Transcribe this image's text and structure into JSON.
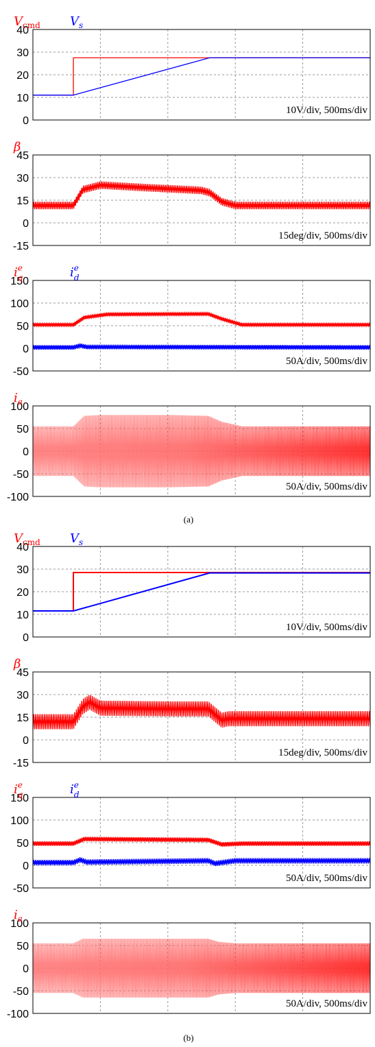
{
  "colors": {
    "red": "#ff0000",
    "blue": "#0000ff",
    "grid": "#999999"
  },
  "captions": [
    "(a)",
    "(b)"
  ],
  "chart_data": [
    {
      "type": "line",
      "panel": "a1",
      "time_ms": [
        0,
        2500
      ],
      "ylim": [
        0,
        40
      ],
      "yticks": [
        "40",
        "30",
        "20",
        "10",
        "0"
      ],
      "scale_label": "10V/div, 500ms/div",
      "series": [
        {
          "name": "V_cmd",
          "color": "red",
          "points": [
            [
              0,
              11
            ],
            [
              300,
              11
            ],
            [
              300,
              27.5
            ],
            [
              2500,
              27.5
            ]
          ]
        },
        {
          "name": "V_s",
          "color": "blue",
          "points": [
            [
              0,
              11
            ],
            [
              300,
              11
            ],
            [
              1310,
              27.5
            ],
            [
              2500,
              27.5
            ]
          ]
        }
      ]
    },
    {
      "type": "line",
      "panel": "a2",
      "time_ms": [
        0,
        2500
      ],
      "ylim": [
        -15,
        45
      ],
      "yticks": [
        "45",
        "30",
        "15",
        "0",
        "-15"
      ],
      "scale_label": "15deg/div, 500ms/div",
      "series": [
        {
          "name": "β",
          "color": "red",
          "band": 2.5,
          "points": [
            [
              0,
              11.5
            ],
            [
              300,
              11.5
            ],
            [
              370,
              22
            ],
            [
              500,
              25
            ],
            [
              800,
              23.5
            ],
            [
              1250,
              21.5
            ],
            [
              1310,
              20
            ],
            [
              1400,
              14
            ],
            [
              1500,
              11.5
            ],
            [
              2500,
              11.5
            ]
          ]
        }
      ]
    },
    {
      "type": "line",
      "panel": "a3",
      "time_ms": [
        0,
        2500
      ],
      "ylim": [
        -50,
        150
      ],
      "yticks": [
        "150",
        "100",
        "50",
        "0",
        "-50"
      ],
      "scale_label": "50A/div, 500ms/div",
      "series": [
        {
          "name": "i_q^e",
          "color": "red",
          "band": 3,
          "points": [
            [
              0,
              52
            ],
            [
              300,
              52
            ],
            [
              380,
              68
            ],
            [
              550,
              75
            ],
            [
              1300,
              76
            ],
            [
              1400,
              65
            ],
            [
              1550,
              52
            ],
            [
              2500,
              52
            ]
          ]
        },
        {
          "name": "i_d^e",
          "color": "blue",
          "band": 5,
          "points": [
            [
              0,
              2
            ],
            [
              300,
              2
            ],
            [
              350,
              6
            ],
            [
              400,
              3
            ],
            [
              2500,
              2
            ]
          ]
        }
      ]
    },
    {
      "type": "area",
      "panel": "a4",
      "time_ms": [
        0,
        2500
      ],
      "ylim": [
        -100,
        100
      ],
      "yticks": [
        "100",
        "50",
        "0",
        "-50",
        "-100"
      ],
      "scale_label": "50A/div, 500ms/div",
      "series": [
        {
          "name": "i_a",
          "color": "red",
          "envelope": [
            [
              0,
              55
            ],
            [
              300,
              55
            ],
            [
              380,
              78
            ],
            [
              500,
              80
            ],
            [
              1000,
              80
            ],
            [
              1300,
              78
            ],
            [
              1400,
              65
            ],
            [
              1550,
              55
            ],
            [
              2500,
              55
            ]
          ]
        }
      ]
    },
    {
      "type": "line",
      "panel": "b1",
      "time_ms": [
        0,
        2500
      ],
      "ylim": [
        0,
        40
      ],
      "yticks": [
        "40",
        "30",
        "20",
        "10",
        "0"
      ],
      "scale_label": "10V/div, 500ms/div",
      "series": [
        {
          "name": "V_cmd",
          "color": "red",
          "points": [
            [
              0,
              11.5
            ],
            [
              300,
              11.5
            ],
            [
              300,
              28.5
            ],
            [
              2500,
              28.5
            ]
          ]
        },
        {
          "name": "V_s",
          "color": "blue",
          "points": [
            [
              0,
              11.5
            ],
            [
              300,
              11.5
            ],
            [
              1310,
              28.3
            ],
            [
              2500,
              28.3
            ]
          ]
        }
      ]
    },
    {
      "type": "line",
      "panel": "b2",
      "time_ms": [
        0,
        2500
      ],
      "ylim": [
        -15,
        45
      ],
      "yticks": [
        "45",
        "30",
        "15",
        "0",
        "-15"
      ],
      "scale_label": "15deg/div, 500ms/div",
      "series": [
        {
          "name": "β",
          "color": "red",
          "band": 5,
          "points": [
            [
              0,
              12
            ],
            [
              300,
              12
            ],
            [
              370,
              22
            ],
            [
              420,
              25
            ],
            [
              500,
              21
            ],
            [
              1000,
              20.5
            ],
            [
              1300,
              20.5
            ],
            [
              1400,
              13
            ],
            [
              1450,
              14
            ],
            [
              2500,
              14
            ]
          ]
        }
      ]
    },
    {
      "type": "line",
      "panel": "b3",
      "time_ms": [
        0,
        2500
      ],
      "ylim": [
        -50,
        150
      ],
      "yticks": [
        "150",
        "100",
        "50",
        "0",
        "-50"
      ],
      "scale_label": "50A/div, 500ms/div",
      "series": [
        {
          "name": "i_q^e",
          "color": "red",
          "band": 5,
          "points": [
            [
              0,
              48
            ],
            [
              300,
              48
            ],
            [
              380,
              58
            ],
            [
              1300,
              56
            ],
            [
              1400,
              46
            ],
            [
              1550,
              48
            ],
            [
              2500,
              48
            ]
          ]
        },
        {
          "name": "i_d^e",
          "color": "blue",
          "band": 6,
          "points": [
            [
              0,
              6
            ],
            [
              300,
              6
            ],
            [
              350,
              12
            ],
            [
              400,
              7
            ],
            [
              1300,
              10
            ],
            [
              1350,
              4
            ],
            [
              1500,
              10
            ],
            [
              2500,
              10
            ]
          ]
        }
      ]
    },
    {
      "type": "area",
      "panel": "b4",
      "time_ms": [
        0,
        2500
      ],
      "ylim": [
        -100,
        100
      ],
      "yticks": [
        "100",
        "50",
        "0",
        "-50",
        "-100"
      ],
      "scale_label": "50A/div, 500ms/div",
      "series": [
        {
          "name": "i_a",
          "color": "red",
          "envelope": [
            [
              0,
              55
            ],
            [
              300,
              55
            ],
            [
              370,
              65
            ],
            [
              1300,
              65
            ],
            [
              1380,
              58
            ],
            [
              1500,
              55
            ],
            [
              2500,
              55
            ]
          ]
        }
      ]
    }
  ]
}
